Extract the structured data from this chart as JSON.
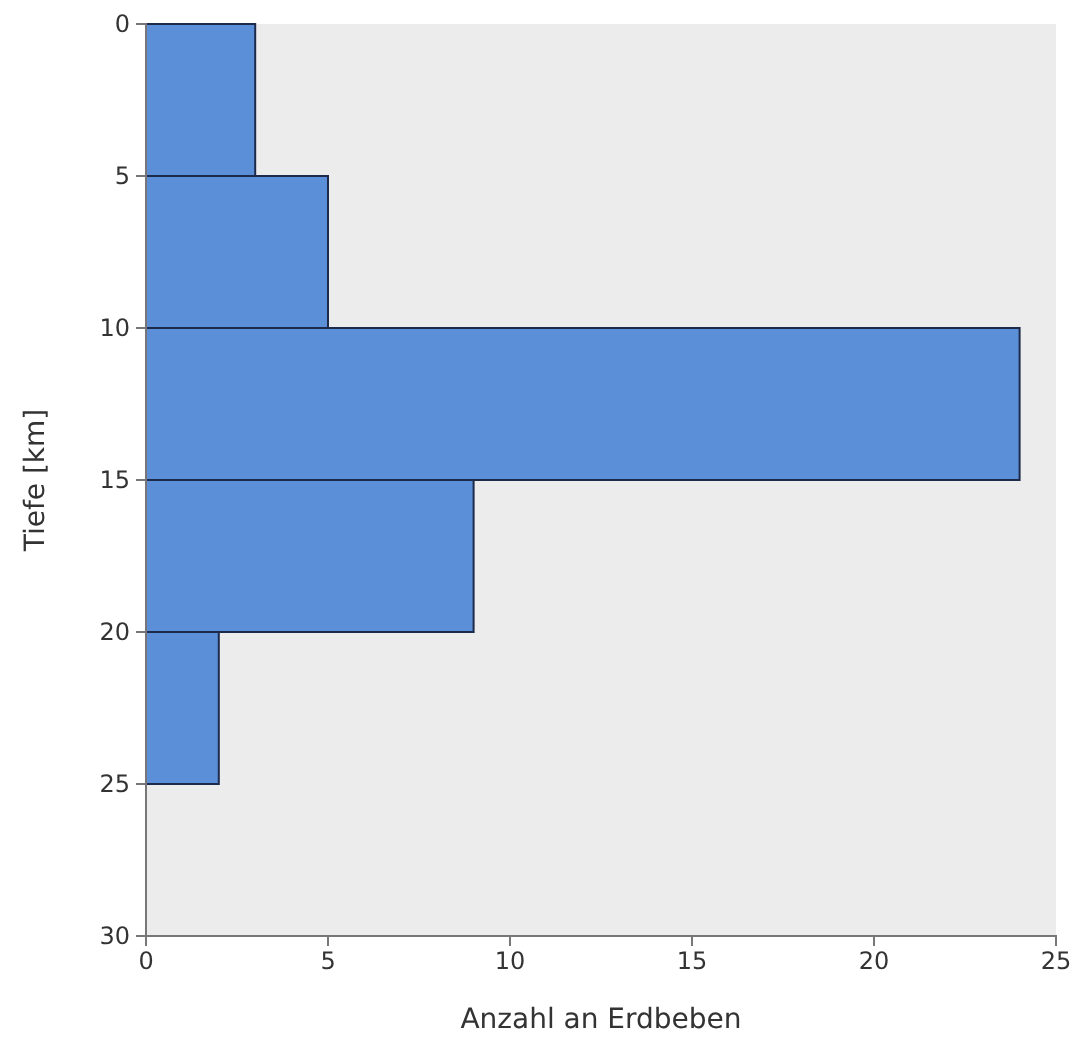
{
  "chart_data": {
    "type": "histogram",
    "orientation": "horizontal",
    "xlabel": "Anzahl an Erdbeben",
    "ylabel": "Tiefe [km]",
    "bins": [
      0,
      5,
      10,
      15,
      20,
      25
    ],
    "values": [
      3,
      5,
      24,
      9,
      2
    ],
    "color": "#5b8fd8",
    "xlim": [
      0,
      25
    ],
    "xticks": [
      0,
      5,
      10,
      15,
      20,
      25
    ],
    "ylim": [
      30,
      0
    ],
    "yticks": [
      0,
      5,
      10,
      15,
      20,
      25,
      30
    ],
    "grid": false
  }
}
